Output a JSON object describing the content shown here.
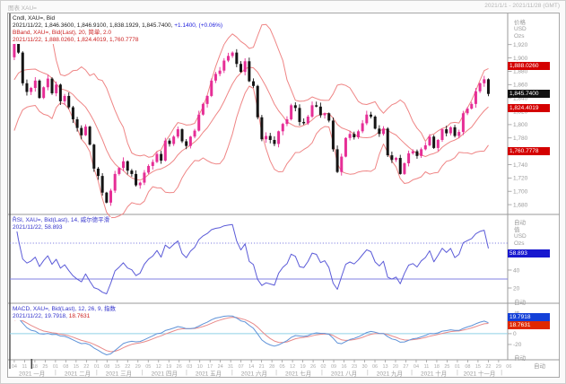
{
  "window": {
    "title": "图表 XAU=",
    "date_range": "2021/1/1 - 2021/11/28 (GMT)",
    "auto_label": "自动"
  },
  "main_panel": {
    "legend": {
      "line1": "Cndl, XAU=, Bid",
      "line2_main": "2021/11/22, 1,846.3600, 1,846.9100, 1,838.1929, 1,845.7400, ",
      "line2_change": "+1.1400, (+0.06%)",
      "line3": "BBand, XAU=, Bid(Last), 20, 简单, 2.0",
      "line4": "2021/11/22, 1,888.0260, 1,824.4019, 1,760.7778"
    },
    "axis": {
      "title": "价格",
      "currency": "USD",
      "unit": "Ozs"
    },
    "badges": {
      "upper": "1,888.0260",
      "last": "1,845.7400",
      "middle": "1,824.4019",
      "lower": "1,760.7778"
    }
  },
  "rsi_panel": {
    "legend": {
      "line1": "RSI, XAU=, Bid(Last), 14, 威尔德平滑",
      "line2": "2021/11/22, 58.893"
    },
    "axis": {
      "title": "值",
      "currency": "USD",
      "unit": "Ozs"
    },
    "badge": "58.893"
  },
  "macd_panel": {
    "legend": {
      "line1": "MACD, XAU=, Bid(Last), 12, 26, 9, 指数",
      "line2_date": "2021/11/22, ",
      "line2_macd": "19.7918, ",
      "line2_signal": "18.7631"
    },
    "axis": {
      "title": "值",
      "currency": "USD",
      "unit": "Ozs"
    },
    "badge_macd": "19.7918",
    "badge_signal": "18.7631"
  },
  "x_axis": {
    "months": [
      {
        "label": "2021 一月",
        "days": [
          "04",
          "11",
          "18",
          "25"
        ]
      },
      {
        "label": "2021 二月",
        "days": [
          "01",
          "08",
          "15",
          "22"
        ]
      },
      {
        "label": "2021 三月",
        "days": [
          "01",
          "08",
          "15",
          "22",
          "29"
        ]
      },
      {
        "label": "2021 四月",
        "days": [
          "05",
          "12",
          "19",
          "26"
        ]
      },
      {
        "label": "2021 五月",
        "days": [
          "03",
          "10",
          "17",
          "24",
          "31"
        ]
      },
      {
        "label": "2021 六月",
        "days": [
          "07",
          "14",
          "21",
          "28"
        ]
      },
      {
        "label": "2021 七月",
        "days": [
          "05",
          "12",
          "19",
          "26"
        ]
      },
      {
        "label": "2021 八月",
        "days": [
          "02",
          "09",
          "16",
          "23",
          "30"
        ]
      },
      {
        "label": "2021 九月",
        "days": [
          "06",
          "13",
          "20",
          "27"
        ]
      },
      {
        "label": "2021 十月",
        "days": [
          "04",
          "11",
          "18",
          "25"
        ]
      },
      {
        "label": "2021 十一月",
        "days": [
          "01",
          "08",
          "15",
          "22",
          "29"
        ]
      },
      {
        "label": "",
        "days": [
          "06"
        ]
      }
    ]
  },
  "chart_data": {
    "type": "candlestick",
    "symbol": "XAU=",
    "title": "XAU= Bid 2021 daily with BBand(20,simple,2.0), RSI(14,Wilder), MACD(12,26,9,exp)",
    "unit": "USD/Ozs",
    "step_trading_days": 2,
    "main_ticks": [
      1920,
      1900,
      1880,
      1860,
      1840,
      1820,
      1800,
      1780,
      1760,
      1740,
      1720,
      1700,
      1680
    ],
    "main_range": [
      1668,
      1964
    ],
    "last_candle": {
      "date": "2021/11/22",
      "open": 1846.36,
      "high": 1846.91,
      "low": 1838.1929,
      "close": 1845.74,
      "change": 1.14,
      "change_pct": "+0.06%"
    },
    "bollinger": {
      "period": 20,
      "type": "simple",
      "width": 2.0,
      "last_upper": 1888.026,
      "last_middle": 1824.4019,
      "last_lower": 1760.7778
    },
    "rsi": {
      "period": 14,
      "smoothing": "wilder",
      "ref_high": 70,
      "ref_low": 30,
      "ticks": [
        40,
        20
      ],
      "last": 58.893,
      "range": [
        5,
        100
      ]
    },
    "macd": {
      "fast": 12,
      "slow": 26,
      "signal": 9,
      "type": "exponential",
      "ticks": [
        20,
        0,
        -20
      ],
      "last_macd": 19.7918,
      "last_signal": 18.7631,
      "range": [
        -45,
        53
      ]
    },
    "pre_series": [
      1792,
      1808,
      1822,
      1838,
      1850,
      1862,
      1872,
      1884,
      1893,
      1901
    ],
    "closes": [
      1943,
      1908,
      1862,
      1849,
      1855,
      1866,
      1840,
      1856,
      1869,
      1847,
      1860,
      1835,
      1843,
      1826,
      1808,
      1795,
      1784,
      1797,
      1770,
      1734,
      1723,
      1698,
      1683,
      1701,
      1726,
      1735,
      1745,
      1731,
      1726,
      1709,
      1713,
      1728,
      1738,
      1744,
      1756,
      1746,
      1776,
      1771,
      1782,
      1793,
      1775,
      1768,
      1782,
      1791,
      1815,
      1831,
      1843,
      1866,
      1876,
      1881,
      1896,
      1903,
      1908,
      1891,
      1879,
      1895,
      1865,
      1858,
      1811,
      1778,
      1783,
      1777,
      1771,
      1790,
      1801,
      1808,
      1829,
      1825,
      1804,
      1802,
      1812,
      1829,
      1827,
      1814,
      1817,
      1806,
      1763,
      1729,
      1752,
      1780,
      1786,
      1781,
      1790,
      1802,
      1815,
      1812,
      1794,
      1786,
      1794,
      1754,
      1747,
      1750,
      1726,
      1742,
      1757,
      1760,
      1753,
      1763,
      1769,
      1782,
      1765,
      1777,
      1793,
      1787,
      1796,
      1783,
      1789,
      1817,
      1824,
      1831,
      1850,
      1862,
      1868,
      1846
    ],
    "colors": {
      "up_candle": "#e62e96",
      "down_candle": "#141414",
      "bollinger": "#ef8585",
      "rsi_line": "#5b5bd8",
      "rsi_ref": "#8080e0",
      "macd_line": "#5f93d8",
      "macd_signal": "#e88a8a",
      "macd_zero": "#8fd0e8",
      "badge_red": "#d40000",
      "badge_black": "#111111",
      "badge_rsi_blue": "#1818cf",
      "badge_macd_blue": "#1440d8",
      "badge_macd_red": "#e02800",
      "axis_text": "#9a9a9a"
    }
  }
}
